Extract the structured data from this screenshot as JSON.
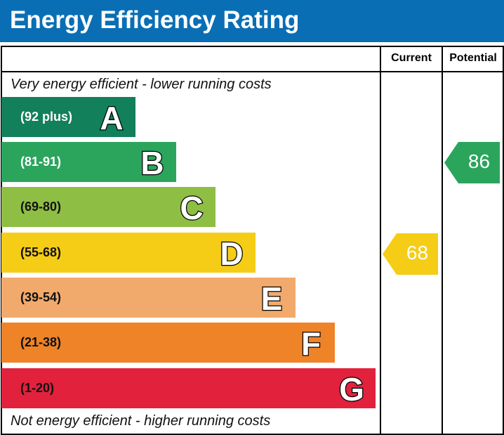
{
  "title": "Energy Efficiency Rating",
  "columns": {
    "current": "Current",
    "potential": "Potential"
  },
  "notes": {
    "top": "Very energy efficient - lower running costs",
    "bottom": "Not energy efficient - higher running costs"
  },
  "chart_data": {
    "type": "bar",
    "bands": [
      {
        "letter": "A",
        "range": "(92 plus)",
        "color": "#12805a",
        "range_color": "#ffffff"
      },
      {
        "letter": "B",
        "range": "(81-91)",
        "color": "#2ba55c",
        "range_color": "#ffffff"
      },
      {
        "letter": "C",
        "range": "(69-80)",
        "color": "#8fbe44",
        "range_color": "#111111"
      },
      {
        "letter": "D",
        "range": "(55-68)",
        "color": "#f5cd17",
        "range_color": "#111111"
      },
      {
        "letter": "E",
        "range": "(39-54)",
        "color": "#f2aa6c",
        "range_color": "#111111"
      },
      {
        "letter": "F",
        "range": "(21-38)",
        "color": "#ee8328",
        "range_color": "#111111"
      },
      {
        "letter": "G",
        "range": "(1-20)",
        "color": "#e2213d",
        "range_color": "#111111"
      }
    ],
    "current": {
      "value": "68",
      "band": "D",
      "color": "#f5cd17"
    },
    "potential": {
      "value": "86",
      "band": "B",
      "color": "#2ba55c"
    }
  }
}
